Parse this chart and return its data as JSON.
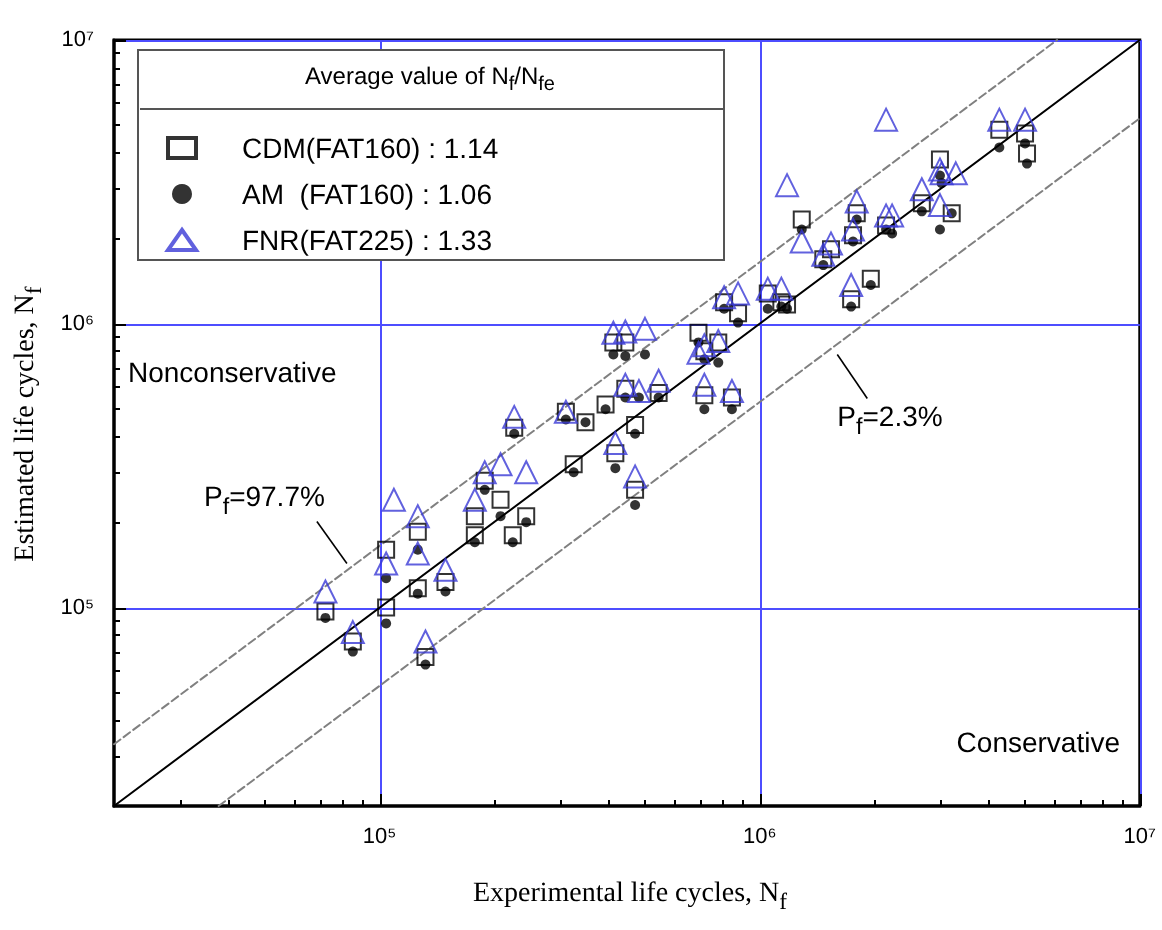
{
  "chart_data": {
    "type": "scatter",
    "xlabel": "Experimental life cycles, N$_{f}$",
    "ylabel": "Estimated life cycles, N$_{f}$",
    "legend_title": "Average value of N$_{f}$/N$_{fe}$",
    "xlim": [
      20000,
      10000000
    ],
    "ylim": [
      20000,
      10000000
    ],
    "xticks": [
      {
        "value": 100000,
        "label": "10⁵"
      },
      {
        "value": 1000000,
        "label": "10⁶"
      },
      {
        "value": 10000000,
        "label": "10⁷"
      }
    ],
    "yticks": [
      {
        "value": 100000,
        "label": "10⁵"
      },
      {
        "value": 1000000,
        "label": "10⁶"
      },
      {
        "value": 10000000,
        "label": "10⁷"
      }
    ],
    "log": "xy",
    "grid": true,
    "legend": "top left",
    "annotations": [
      "Nonconservative",
      "Conservative",
      {
        "text": "P$_{f}$=97.7%",
        "x": 82000,
        "y": 143000
      },
      {
        "text": "P$_{f}$=2.3%",
        "x": 1600000,
        "y": 780000
      }
    ],
    "series": [
      {
        "type": "line",
        "color": "#000000",
        "line_style": "solid",
        "x": [
          20000,
          10000000
        ],
        "values": [
          20000,
          10000000
        ]
      },
      {
        "type": "line",
        "color": "#808080",
        "line_style": "dashed",
        "x": [
          20000,
          6060000
        ],
        "values": [
          33000,
          10000000
        ]
      },
      {
        "type": "line",
        "color": "#808080",
        "line_style": "dashed",
        "x": [
          37700,
          10000000
        ],
        "values": [
          20000,
          5300000
        ]
      },
      {
        "name": "CDM(FAT160) : 1.14",
        "color": "#000000",
        "marker": "square",
        "x": [
          72000,
          85000,
          104000,
          104000,
          126000,
          126000,
          132000,
          149000,
          178000,
          178000,
          189000,
          208000,
          224000,
          226000,
          243000,
          309000,
          324000,
          348000,
          393000,
          412000,
          417000,
          443000,
          443000,
          470000,
          470000,
          542000,
          690000,
          715000,
          715000,
          778000,
          806000,
          845000,
          877000,
          1050000,
          1140000,
          1180000,
          1290000,
          1470000,
          1540000,
          1740000,
          1760000,
          1800000,
          1960000,
          2150000,
          2670000,
          2980000,
          3200000,
          4270000,
          4990000,
          5050000
        ],
        "values": [
          97000,
          76000,
          160000,
          100000,
          185000,
          117000,
          67000,
          123000,
          180000,
          210000,
          280000,
          240000,
          180000,
          430000,
          210000,
          490000,
          320000,
          450000,
          520000,
          860000,
          350000,
          860000,
          590000,
          440000,
          260000,
          570000,
          930000,
          800000,
          560000,
          860000,
          1190000,
          550000,
          1090000,
          1280000,
          1190000,
          1170000,
          2330000,
          1690000,
          1830000,
          1220000,
          2050000,
          2450000,
          1440000,
          2220000,
          2660000,
          3790000,
          2450000,
          4830000,
          4680000,
          3980000
        ]
      },
      {
        "name": "AM  (FAT160) : 1.06",
        "color": "#000000",
        "marker": "circle",
        "x": [
          72000,
          85000,
          104000,
          104000,
          126000,
          126000,
          132000,
          149000,
          178000,
          189000,
          208000,
          224000,
          226000,
          243000,
          309000,
          324000,
          348000,
          393000,
          412000,
          417000,
          443000,
          443000,
          470000,
          470000,
          499000,
          481000,
          542000,
          690000,
          715000,
          715000,
          778000,
          806000,
          845000,
          877000,
          1050000,
          1140000,
          1180000,
          1290000,
          1470000,
          1760000,
          1740000,
          1800000,
          1960000,
          2150000,
          2230000,
          2670000,
          2980000,
          3010000,
          2980000,
          3200000,
          4270000,
          4990000,
          5050000
        ],
        "values": [
          92000,
          70000,
          127000,
          88000,
          160000,
          112000,
          63000,
          114000,
          170000,
          260000,
          210000,
          170000,
          410000,
          200000,
          460000,
          300000,
          450000,
          500000,
          780000,
          310000,
          770000,
          550000,
          410000,
          230000,
          780000,
          550000,
          550000,
          860000,
          750000,
          500000,
          730000,
          1130000,
          500000,
          1010000,
          1130000,
          1150000,
          1130000,
          2150000,
          1610000,
          1950000,
          1150000,
          2330000,
          1370000,
          2150000,
          2080000,
          2490000,
          3330000,
          3130000,
          2150000,
          2450000,
          4180000,
          4320000,
          3670000
        ]
      },
      {
        "name": "FNR(FAT225) : 1.33",
        "color": "#3a3ad6",
        "marker": "triangle",
        "x": [
          72000,
          85000,
          109000,
          104000,
          126000,
          126000,
          132000,
          149000,
          178000,
          189000,
          208000,
          226000,
          243000,
          309000,
          412000,
          417000,
          443000,
          443000,
          470000,
          481000,
          499000,
          542000,
          690000,
          715000,
          715000,
          778000,
          806000,
          845000,
          877000,
          1050000,
          1140000,
          1180000,
          1290000,
          1470000,
          1540000,
          1740000,
          1760000,
          1800000,
          2150000,
          2150000,
          2230000,
          2670000,
          2980000,
          3010000,
          3280000,
          2980000,
          4270000,
          4990000
        ],
        "values": [
          114000,
          82000,
          240000,
          143000,
          210000,
          155000,
          76000,
          136000,
          240000,
          300000,
          320000,
          470000,
          300000,
          490000,
          930000,
          380000,
          940000,
          610000,
          290000,
          580000,
          960000,
          630000,
          790000,
          840000,
          610000,
          870000,
          1240000,
          580000,
          1280000,
          1330000,
          1330000,
          3080000,
          1950000,
          1750000,
          1920000,
          1370000,
          2150000,
          2700000,
          5240000,
          2410000,
          2410000,
          2980000,
          3500000,
          3390000,
          3390000,
          2620000,
          5240000,
          5240000
        ]
      }
    ]
  }
}
